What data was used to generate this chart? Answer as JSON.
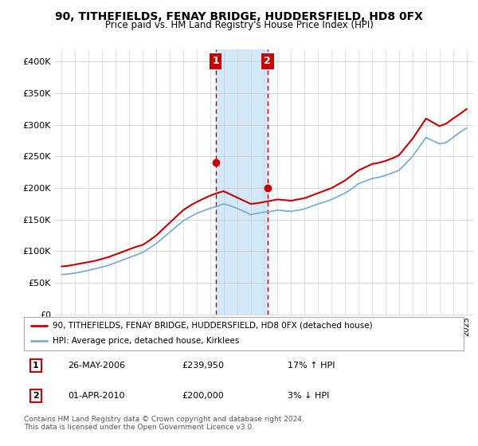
{
  "title": "90, TITHEFIELDS, FENAY BRIDGE, HUDDERSFIELD, HD8 0FX",
  "subtitle": "Price paid vs. HM Land Registry's House Price Index (HPI)",
  "ylabel_ticks": [
    "£0",
    "£50K",
    "£100K",
    "£150K",
    "£200K",
    "£250K",
    "£300K",
    "£350K",
    "£400K"
  ],
  "ytick_vals": [
    0,
    50000,
    100000,
    150000,
    200000,
    250000,
    300000,
    350000,
    400000
  ],
  "ylim": [
    0,
    420000
  ],
  "xlim_start": 1994.5,
  "xlim_end": 2025.5,
  "sale1": {
    "date_num": 2006.4,
    "price": 239950,
    "label": "1",
    "date_str": "26-MAY-2006",
    "pct": "17% ↑ HPI"
  },
  "sale2": {
    "date_num": 2010.25,
    "price": 200000,
    "label": "2",
    "date_str": "01-APR-2010",
    "pct": "3% ↓ HPI"
  },
  "shade_color": "#cce4f7",
  "red_line_color": "#cc0000",
  "blue_line_color": "#7aaed4",
  "marker_color": "#cc0000",
  "vline_color": "#cc0000",
  "box_color": "#cc0000",
  "legend_line1": "90, TITHEFIELDS, FENAY BRIDGE, HUDDERSFIELD, HD8 0FX (detached house)",
  "legend_line2": "HPI: Average price, detached house, Kirklees",
  "footer": "Contains HM Land Registry data © Crown copyright and database right 2024.\nThis data is licensed under the Open Government Licence v3.0.",
  "background_color": "#ffffff",
  "hpi_years": [
    1995,
    1995.5,
    1996,
    1996.5,
    1997,
    1997.5,
    1998,
    1998.5,
    1999,
    1999.5,
    2000,
    2000.5,
    2001,
    2001.5,
    2002,
    2002.5,
    2003,
    2003.5,
    2004,
    2004.5,
    2005,
    2005.5,
    2006,
    2006.5,
    2007,
    2007.5,
    2008,
    2008.5,
    2009,
    2009.5,
    2010,
    2010.5,
    2011,
    2011.5,
    2012,
    2012.5,
    2013,
    2013.5,
    2014,
    2014.5,
    2015,
    2015.5,
    2016,
    2016.5,
    2017,
    2017.5,
    2018,
    2018.5,
    2019,
    2019.5,
    2020,
    2020.5,
    2021,
    2021.5,
    2022,
    2022.5,
    2023,
    2023.5,
    2024,
    2024.5,
    2025
  ],
  "hpi_vals": [
    63000,
    64000,
    65500,
    67500,
    70000,
    72500,
    75000,
    78000,
    82000,
    86000,
    90000,
    94000,
    98000,
    105000,
    112000,
    121000,
    130000,
    139000,
    148000,
    154000,
    160000,
    164000,
    168000,
    171000,
    175000,
    172000,
    168000,
    163000,
    158000,
    160000,
    162000,
    163000,
    165000,
    164000,
    163000,
    165000,
    167000,
    171000,
    175000,
    178000,
    182000,
    187000,
    192000,
    199000,
    207000,
    211000,
    215000,
    217000,
    220000,
    224000,
    228000,
    239000,
    250000,
    265000,
    280000,
    275000,
    270000,
    272000,
    280000,
    288000,
    295000
  ],
  "red_years": [
    1995,
    1995.5,
    1996,
    1996.5,
    1997,
    1997.5,
    1998,
    1998.5,
    1999,
    1999.5,
    2000,
    2000.5,
    2001,
    2001.5,
    2002,
    2002.5,
    2003,
    2003.5,
    2004,
    2004.5,
    2005,
    2005.5,
    2006,
    2006.5,
    2007,
    2007.5,
    2008,
    2008.5,
    2009,
    2009.5,
    2010,
    2010.5,
    2011,
    2011.5,
    2012,
    2012.5,
    2013,
    2013.5,
    2014,
    2014.5,
    2015,
    2015.5,
    2016,
    2016.5,
    2017,
    2017.5,
    2018,
    2018.5,
    2019,
    2019.5,
    2020,
    2020.5,
    2021,
    2021.5,
    2022,
    2022.5,
    2023,
    2023.5,
    2024,
    2024.5,
    2025
  ],
  "red_vals": [
    76000,
    77000,
    79000,
    81000,
    83000,
    85000,
    88000,
    91000,
    95000,
    99000,
    103000,
    107000,
    110000,
    117000,
    125000,
    135000,
    145000,
    155000,
    165000,
    172000,
    178000,
    183000,
    188000,
    192000,
    195000,
    190000,
    185000,
    180000,
    175000,
    176000,
    178000,
    180000,
    182000,
    181000,
    180000,
    182000,
    184000,
    188000,
    192000,
    196000,
    200000,
    206000,
    212000,
    220000,
    228000,
    233000,
    238000,
    240000,
    243000,
    247000,
    252000,
    265000,
    278000,
    294000,
    310000,
    304000,
    298000,
    302000,
    310000,
    317000,
    325000
  ]
}
